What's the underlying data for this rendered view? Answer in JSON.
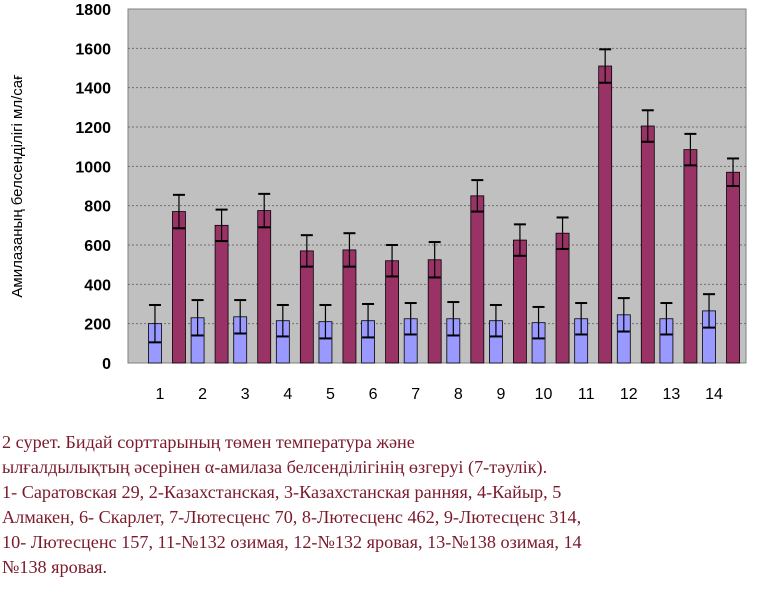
{
  "chart_data": {
    "type": "bar",
    "ylabel": "Амилазаның белсенділігі мл/сағ",
    "ylim": [
      0,
      1800
    ],
    "yticks": [
      0,
      200,
      400,
      600,
      800,
      1000,
      1200,
      1400,
      1600,
      1800
    ],
    "categories": [
      "1",
      "2",
      "3",
      "4",
      "5",
      "6",
      "7",
      "8",
      "9",
      "10",
      "11",
      "12",
      "13",
      "14"
    ],
    "grid": "horizontal dotted",
    "error_bars": true,
    "series": [
      {
        "color": "#9999ff",
        "values": [
          200,
          230,
          235,
          215,
          210,
          215,
          225,
          225,
          215,
          205,
          225,
          245,
          225,
          265
        ],
        "errors": [
          95,
          90,
          85,
          80,
          85,
          85,
          80,
          85,
          80,
          80,
          80,
          85,
          80,
          85
        ]
      },
      {
        "color": "#993366",
        "values": [
          770,
          700,
          775,
          570,
          575,
          520,
          525,
          850,
          625,
          660,
          1510,
          1205,
          1085,
          970
        ],
        "errors": [
          85,
          80,
          85,
          80,
          85,
          80,
          90,
          80,
          80,
          80,
          85,
          80,
          80,
          70
        ]
      }
    ]
  },
  "caption": {
    "line1": " 2 сурет.  Бидай сорттарының төмен температура және",
    "line2": "ылғалдылықтың әсерінен α-амилаза белсенділігінің өзгеруі (7-тәулік).",
    "line3": "1- Саратовская 29, 2-Казахстанская, 3-Казахстанская ранняя, 4-Кайыр,   5",
    "line4": "Алмакен, 6- Скарлет, 7-Лютесценс 70, 8-Лютесценс 462, 9-Лютесценс  314,",
    "line5": "10- Лютесценс  157, 11-№132 озимая, 12-№132 яровая, 13-№138 озимая, 14",
    "line6": "№138 яровая."
  }
}
